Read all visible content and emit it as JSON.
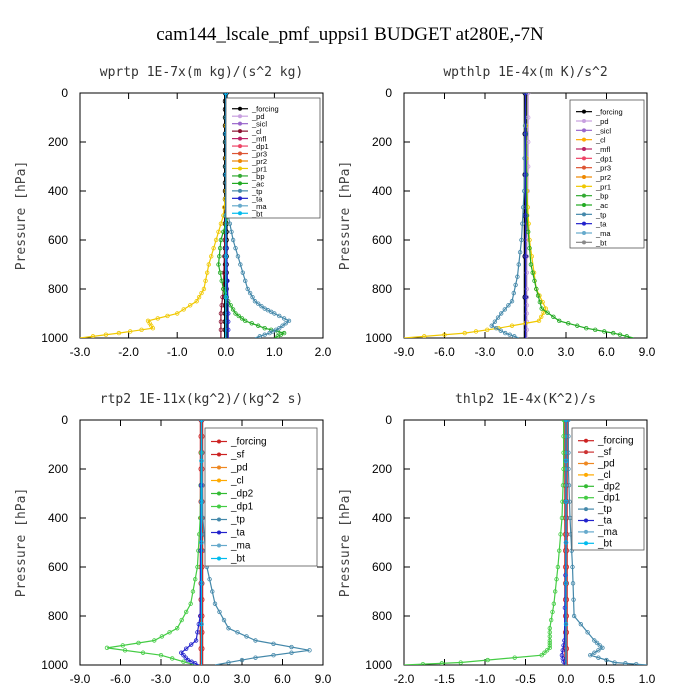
{
  "title": "cam144_lscale_pmf_uppsi1  BUDGET at280E,-7N",
  "chart_data": [
    {
      "type": "line",
      "title": "wprtp   1E-7x(m kg)/(s^2 kg)",
      "ylabel": "Pressure [hPa]",
      "xlim": [
        -3.0,
        2.0
      ],
      "xticks": [
        "-3.0",
        "-2.0",
        "-1.0",
        "0.0",
        "1.0",
        "2.0"
      ],
      "ylim": [
        1000,
        0
      ],
      "yticks": [
        "0",
        "200",
        "400",
        "600",
        "800",
        "1000"
      ],
      "legend_position": "top-right",
      "legend": [
        "_forcing",
        "_pd",
        "_sicl",
        "_cl",
        "_mfl",
        "_dp1",
        "_pr3",
        "_pr2",
        "_pr1",
        "_bp",
        "_ac",
        "_tp",
        "_ta",
        "_ma",
        "_bt"
      ],
      "series": [
        {
          "name": "_forcing",
          "color": "#000000",
          "pressure": [
            0,
            100,
            200,
            300,
            400,
            500,
            600,
            700,
            800,
            900,
            1000
          ],
          "values": [
            0,
            0,
            0,
            0,
            0,
            0,
            0,
            0,
            0,
            0,
            0
          ]
        },
        {
          "name": "_pd",
          "color": "#c8a0e0",
          "pressure": [
            0,
            500,
            1000
          ],
          "values": [
            0,
            0,
            0
          ]
        },
        {
          "name": "_cl",
          "color": "#8a1030",
          "pressure": [
            0,
            400,
            600,
            800,
            900,
            1000
          ],
          "values": [
            0,
            0,
            -0.02,
            -0.05,
            -0.1,
            -0.1
          ]
        },
        {
          "name": "_pr1",
          "color": "#f0c800",
          "pressure": [
            0,
            400,
            500,
            600,
            700,
            800,
            850,
            900,
            930,
            960,
            980,
            1000
          ],
          "values": [
            0,
            0,
            -0.05,
            -0.2,
            -0.35,
            -0.45,
            -0.6,
            -1.0,
            -1.6,
            -1.5,
            -2.2,
            -3.0
          ]
        },
        {
          "name": "_ac",
          "color": "#22aa22",
          "pressure": [
            0,
            300,
            500,
            600,
            700,
            800,
            850,
            900,
            930,
            960,
            980,
            1000
          ],
          "values": [
            0,
            0,
            0.05,
            -0.1,
            -0.15,
            -0.05,
            0.05,
            0.2,
            0.4,
            0.8,
            1.2,
            1.0
          ]
        },
        {
          "name": "_tp",
          "color": "#4488aa",
          "pressure": [
            0,
            300,
            500,
            600,
            700,
            800,
            850,
            880,
            900,
            930,
            960,
            980,
            1000
          ],
          "values": [
            0,
            0,
            0.05,
            0.15,
            0.3,
            0.45,
            0.6,
            0.8,
            1.0,
            1.3,
            1.1,
            0.9,
            0.6
          ]
        },
        {
          "name": "_ta",
          "color": "#2222cc",
          "pressure": [
            0,
            500,
            900,
            1000
          ],
          "values": [
            0,
            0,
            0.05,
            0.05
          ]
        },
        {
          "name": "_bt",
          "color": "#00bbee",
          "pressure": [
            0,
            500,
            1000
          ],
          "values": [
            0,
            0,
            0
          ]
        }
      ]
    },
    {
      "type": "line",
      "title": "wpthlp   1E-4x(m K)/s^2",
      "ylabel": "Pressure [hPa]",
      "xlim": [
        -9.0,
        9.0
      ],
      "xticks": [
        "-9.0",
        "-6.0",
        "-3.0",
        "0.0",
        "3.0",
        "6.0",
        "9.0"
      ],
      "ylim": [
        1000,
        0
      ],
      "yticks": [
        "0",
        "200",
        "400",
        "600",
        "800",
        "1000"
      ],
      "legend_position": "top-right",
      "legend": [
        "_forcing",
        "_pd",
        "_sicl",
        "_cl",
        "_mfl",
        "_dp1",
        "_pr3",
        "_pr2",
        "_pr1",
        "_bp",
        "_ac",
        "_tp",
        "_ta",
        "_ma",
        "_bt"
      ],
      "series": [
        {
          "name": "_forcing",
          "color": "#000000",
          "pressure": [
            0,
            500,
            1000
          ],
          "values": [
            0,
            0,
            0
          ]
        },
        {
          "name": "_pd",
          "color": "#c8a0e0",
          "pressure": [
            0,
            300,
            600,
            800,
            900,
            1000
          ],
          "values": [
            0.2,
            0.2,
            0.1,
            0.1,
            0.1,
            0.1
          ]
        },
        {
          "name": "_pr1",
          "color": "#f0c800",
          "pressure": [
            0,
            400,
            600,
            800,
            880,
            930,
            960,
            980,
            1000
          ],
          "values": [
            0,
            0.1,
            0.3,
            0.8,
            1.5,
            1.0,
            -2.0,
            -4.5,
            -9.0
          ]
        },
        {
          "name": "_ac",
          "color": "#22aa22",
          "pressure": [
            0,
            500,
            700,
            800,
            880,
            930,
            960,
            980,
            1000
          ],
          "values": [
            0,
            0.1,
            0.4,
            0.8,
            1.2,
            2.5,
            4.5,
            6.5,
            8.0
          ]
        },
        {
          "name": "_tp",
          "color": "#4488aa",
          "pressure": [
            0,
            400,
            600,
            750,
            850,
            900,
            950,
            980,
            1000
          ],
          "values": [
            0,
            -0.1,
            -0.3,
            -0.6,
            -1.0,
            -1.8,
            -2.5,
            -1.5,
            -0.5
          ]
        },
        {
          "name": "_ta",
          "color": "#2222cc",
          "pressure": [
            0,
            500,
            1000
          ],
          "values": [
            0,
            0,
            0
          ]
        }
      ]
    },
    {
      "type": "line",
      "title": "rtp2   1E-11x(kg^2)/(kg^2 s)",
      "ylabel": "Pressure [hPa]",
      "xlim": [
        -9.0,
        9.0
      ],
      "xticks": [
        "-9.0",
        "-6.0",
        "-3.0",
        "0.0",
        "3.0",
        "6.0",
        "9.0"
      ],
      "ylim": [
        1000,
        0
      ],
      "yticks": [
        "0",
        "200",
        "400",
        "600",
        "800",
        "1000"
      ],
      "legend_position": "top-right",
      "legend": [
        "_forcing",
        "_sf",
        "_pd",
        "_cl",
        "_dp2",
        "_dp1",
        "_tp",
        "_ta",
        "_ma",
        "_bt"
      ],
      "series": [
        {
          "name": "_forcing",
          "color": "#cc2222",
          "pressure": [
            0,
            200,
            400,
            600,
            800,
            1000
          ],
          "values": [
            0,
            0,
            0,
            0,
            0,
            0
          ]
        },
        {
          "name": "_sf",
          "color": "#cc2222",
          "pressure": [
            0,
            500,
            1000
          ],
          "values": [
            0,
            0,
            0
          ]
        },
        {
          "name": "_dp1",
          "color": "#44cc44",
          "pressure": [
            0,
            400,
            600,
            750,
            850,
            900,
            930,
            960,
            1000
          ],
          "values": [
            0,
            -0.1,
            -0.3,
            -0.8,
            -1.8,
            -3.5,
            -7.0,
            -3.0,
            -0.5
          ]
        },
        {
          "name": "_tp",
          "color": "#4488aa",
          "pressure": [
            0,
            400,
            600,
            750,
            850,
            900,
            940,
            970,
            1000
          ],
          "values": [
            0,
            0.1,
            0.4,
            1.0,
            2.0,
            4.0,
            8.0,
            4.0,
            1.0
          ]
        },
        {
          "name": "_ta",
          "color": "#2222cc",
          "pressure": [
            0,
            800,
            900,
            950,
            980,
            1000
          ],
          "values": [
            0,
            -0.1,
            -0.4,
            -1.5,
            -1.0,
            -0.2
          ]
        },
        {
          "name": "_bt",
          "color": "#00bbee",
          "pressure": [
            0,
            500,
            1000
          ],
          "values": [
            0,
            0,
            0
          ]
        }
      ]
    },
    {
      "type": "line",
      "title": "thlp2   1E-4x(K^2)/s",
      "ylabel": "Pressure [hPa]",
      "xlim": [
        -2.0,
        1.0
      ],
      "xticks": [
        "-2.0",
        "-1.5",
        "-1.0",
        "-0.5",
        "0.0",
        "0.5",
        "1.0"
      ],
      "ylim": [
        1000,
        0
      ],
      "yticks": [
        "0",
        "200",
        "400",
        "600",
        "800",
        "1000"
      ],
      "legend_position": "top-right",
      "legend": [
        "_forcing",
        "_sf",
        "_pd",
        "_cl",
        "_dp2",
        "_dp1",
        "_tp",
        "_ta",
        "_ma",
        "_bt"
      ],
      "series": [
        {
          "name": "_forcing",
          "color": "#cc2222",
          "pressure": [
            0,
            200,
            400,
            600,
            800,
            1000
          ],
          "values": [
            0,
            0,
            0,
            0,
            0,
            0
          ]
        },
        {
          "name": "_dp1",
          "color": "#44cc44",
          "pressure": [
            0,
            200,
            400,
            600,
            750,
            850,
            900,
            930,
            960,
            990,
            1000
          ],
          "values": [
            -0.03,
            -0.03,
            -0.05,
            -0.1,
            -0.15,
            -0.2,
            -0.2,
            -0.2,
            -0.3,
            -1.3,
            -2.0
          ]
        },
        {
          "name": "_tp",
          "color": "#4488aa",
          "pressure": [
            0,
            200,
            400,
            600,
            800,
            900,
            930,
            960,
            990,
            1000
          ],
          "values": [
            0.03,
            0.03,
            0.05,
            0.08,
            0.1,
            0.35,
            0.45,
            0.3,
            0.6,
            1.0
          ]
        },
        {
          "name": "_ta",
          "color": "#2222cc",
          "pressure": [
            0,
            500,
            900,
            960,
            1000
          ],
          "values": [
            0,
            0,
            -0.02,
            -0.05,
            -0.02
          ]
        },
        {
          "name": "_bt",
          "color": "#00bbee",
          "pressure": [
            0,
            500,
            1000
          ],
          "values": [
            0,
            0,
            0
          ]
        }
      ]
    }
  ]
}
